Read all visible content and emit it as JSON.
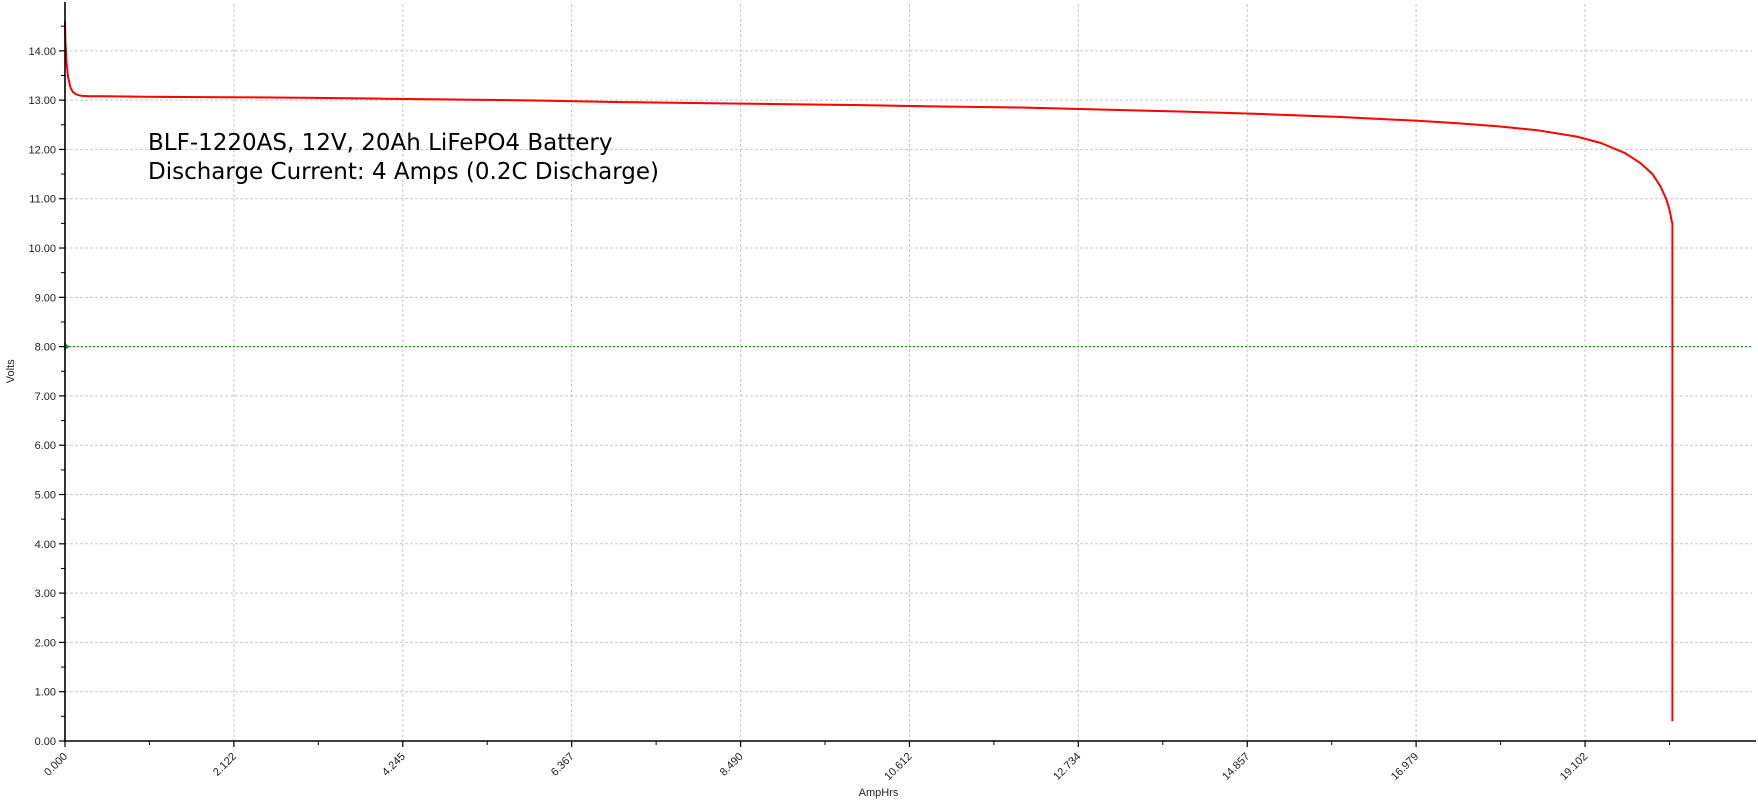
{
  "chart_data": {
    "type": "line",
    "title": "",
    "xlabel": "AmpHrs",
    "ylabel": "Volts",
    "annotation_lines": [
      "BLF-1220AS, 12V, 20Ah LiFePO4 Battery",
      "Discharge Current:  4 Amps  (0.2C Discharge)"
    ],
    "xlim": [
      0,
      21.2
    ],
    "ylim": [
      0,
      14.95
    ],
    "x_ticks": [
      0,
      2.122,
      4.245,
      6.367,
      8.49,
      10.612,
      12.734,
      14.857,
      16.979,
      19.102
    ],
    "x_tick_labels": [
      "0.000",
      "2.122",
      "4.245",
      "6.367",
      "8.490",
      "10.612",
      "12.734",
      "14.857",
      "16.979",
      "19.102"
    ],
    "y_ticks": [
      0,
      1,
      2,
      3,
      4,
      5,
      6,
      7,
      8,
      9,
      10,
      11,
      12,
      13,
      14
    ],
    "y_tick_labels": [
      "0.00",
      "1.00",
      "2.00",
      "3.00",
      "4.00",
      "5.00",
      "6.00",
      "7.00",
      "8.00",
      "9.00",
      "10.00",
      "11.00",
      "12.00",
      "13.00",
      "14.00"
    ],
    "grid": true,
    "threshold": {
      "y": 8.0,
      "color": "#1a9a1a"
    },
    "series": [
      {
        "color": "#ff0000",
        "x": [
          0,
          0.005,
          0.02,
          0.04,
          0.07,
          0.1,
          0.15,
          0.2,
          0.3,
          0.5,
          1.0,
          2.0,
          3.0,
          4.0,
          5.0,
          6.0,
          7.0,
          8.0,
          9.0,
          10.0,
          11.0,
          12.0,
          13.0,
          14.0,
          15.0,
          16.0,
          17.0,
          17.5,
          18.0,
          18.5,
          19.0,
          19.3,
          19.6,
          19.8,
          19.95,
          20.05,
          20.12,
          20.16,
          20.18,
          20.19,
          20.2,
          20.2,
          20.2
        ],
        "y": [
          14.6,
          14.2,
          13.75,
          13.45,
          13.25,
          13.16,
          13.11,
          13.09,
          13.08,
          13.08,
          13.07,
          13.06,
          13.05,
          13.03,
          13.01,
          12.99,
          12.96,
          12.94,
          12.92,
          12.9,
          12.87,
          12.85,
          12.81,
          12.77,
          12.72,
          12.66,
          12.58,
          12.53,
          12.47,
          12.39,
          12.26,
          12.13,
          11.93,
          11.72,
          11.5,
          11.25,
          11.0,
          10.8,
          10.65,
          10.55,
          10.5,
          5.0,
          0.4
        ]
      }
    ]
  }
}
